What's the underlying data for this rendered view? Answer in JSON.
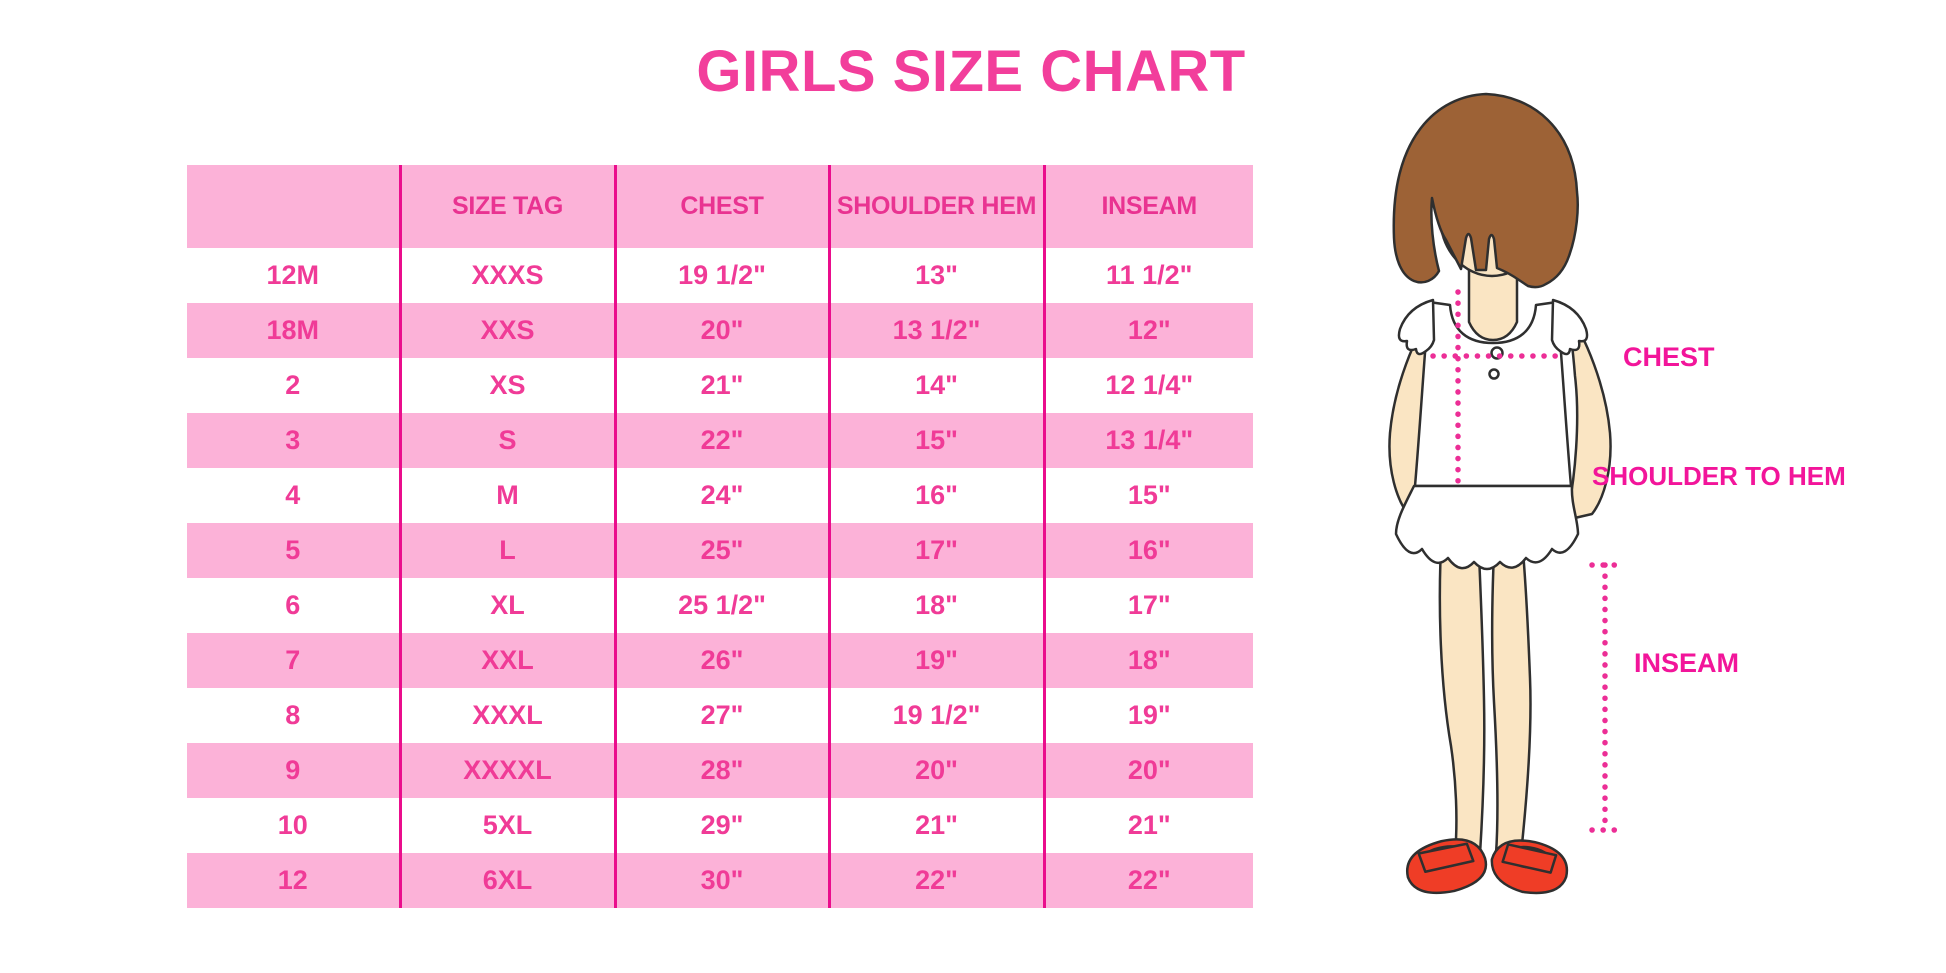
{
  "title": "GIRLS SIZE CHART",
  "chart_data": {
    "type": "table",
    "title": "GIRLS SIZE CHART",
    "columns": [
      "",
      "SIZE TAG",
      "CHEST",
      "SHOULDER HEM",
      "INSEAM"
    ],
    "rows": [
      [
        "12M",
        "XXXS",
        "19 1/2\"",
        "13\"",
        "11 1/2\""
      ],
      [
        "18M",
        "XXS",
        "20\"",
        "13 1/2\"",
        "12\""
      ],
      [
        "2",
        "XS",
        "21\"",
        "14\"",
        "12 1/4\""
      ],
      [
        "3",
        "S",
        "22\"",
        "15\"",
        "13 1/4\""
      ],
      [
        "4",
        "M",
        "24\"",
        "16\"",
        "15\""
      ],
      [
        "5",
        "L",
        "25\"",
        "17\"",
        "16\""
      ],
      [
        "6",
        "XL",
        "25 1/2\"",
        "18\"",
        "17\""
      ],
      [
        "7",
        "XXL",
        "26\"",
        "19\"",
        "18\""
      ],
      [
        "8",
        "XXXL",
        "27\"",
        "19 1/2\"",
        "19\""
      ],
      [
        "9",
        "XXXXL",
        "28\"",
        "20\"",
        "20\""
      ],
      [
        "10",
        "5XL",
        "29\"",
        "21\"",
        "21\""
      ],
      [
        "12",
        "6XL",
        "30\"",
        "22\"",
        "22\""
      ]
    ],
    "row_striping": "white / pink alternating, header pink",
    "grid": "vertical separators only"
  },
  "figure": {
    "description": "illustrated girl with measurement guides",
    "labels": {
      "chest": "CHEST",
      "shoulder_hem": "SHOULDER TO HEM",
      "inseam": "INSEAM"
    }
  },
  "colors": {
    "title_pink": "#F23E9B",
    "table_text_pink": "#F03B97",
    "row_pink": "#FCB2D8",
    "separator_magenta": "#EA0D8C",
    "label_pink": "#F2159A",
    "dotted_line_pink": "#EC2E96",
    "hair_brown": "#9D6236",
    "skin": "#FAE5C3",
    "shoe_red": "#EF3D26",
    "background": "#FFFFFF"
  }
}
